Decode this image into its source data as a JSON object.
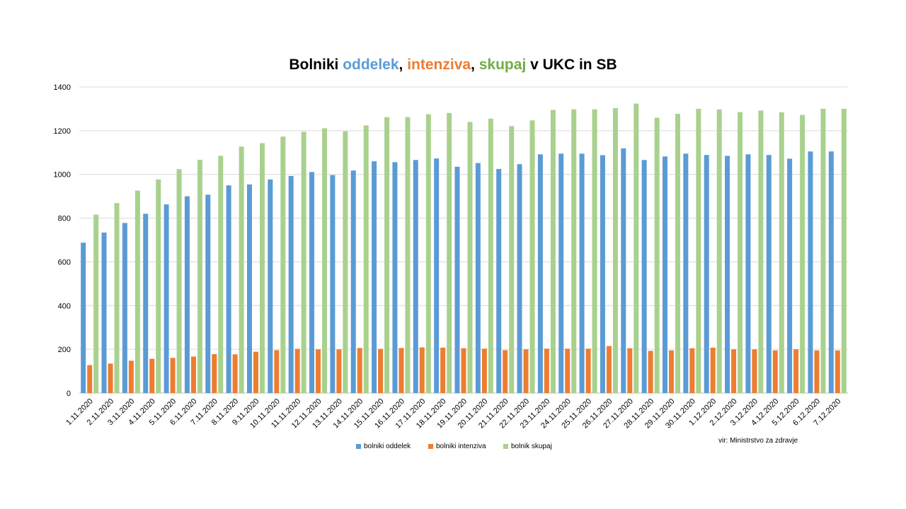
{
  "chart_data": {
    "type": "bar",
    "title": {
      "prefix": "Bolniki ",
      "part1": "oddelek",
      "sep1": ", ",
      "part2": "intenziva",
      "sep2": ", ",
      "part3": "skupaj",
      "suffix": " v UKC in SB"
    },
    "xlabel": "",
    "ylabel": "",
    "ylim": [
      0,
      1400
    ],
    "yticks": [
      0,
      200,
      400,
      600,
      800,
      1000,
      1200,
      1400
    ],
    "grid": true,
    "legend_position": "bottom",
    "categories": [
      "1.11.2020",
      "2.11.2020",
      "3.11.2020",
      "4.11.2020",
      "5.11.2020",
      "6.11.2020",
      "7.11.2020",
      "8.11.2020",
      "9.11.2020",
      "10.11.2020",
      "11.11.2020",
      "12.11.2020",
      "13.11.2020",
      "14.11.2020",
      "15.11.2020",
      "16.11.2020",
      "17.11.2020",
      "18.11.2020",
      "19.11.2020",
      "20.11.2020",
      "21.11.2020",
      "22.11.2020",
      "23.11.2020",
      "24.11.2020",
      "25.11.2020",
      "26.11.2020",
      "27.11.2020",
      "28.11.2020",
      "29.11.2020",
      "30.11.2020",
      "1.12.2020",
      "2.12.2020",
      "3.12.2020",
      "4.12.2020",
      "5.12.2020",
      "6.12.2020",
      "7.12.2020"
    ],
    "series": [
      {
        "name": "bolniki oddelek",
        "color": "#5b9bd5",
        "values": [
          688,
          734,
          778,
          820,
          863,
          900,
          907,
          950,
          954,
          977,
          993,
          1011,
          997,
          1018,
          1060,
          1056,
          1066,
          1073,
          1035,
          1052,
          1025,
          1047,
          1092,
          1095,
          1095,
          1088,
          1119,
          1066,
          1082,
          1095,
          1089,
          1085,
          1092,
          1089,
          1072,
          1105,
          1105
        ]
      },
      {
        "name": "bolniki intenziva",
        "color": "#ed7d31",
        "values": [
          128,
          135,
          148,
          157,
          161,
          167,
          178,
          177,
          189,
          196,
          202,
          200,
          200,
          206,
          202,
          206,
          209,
          208,
          205,
          203,
          196,
          200,
          203,
          203,
          203,
          215,
          205,
          193,
          195,
          205,
          208,
          200,
          200,
          195,
          200,
          195,
          195
        ]
      },
      {
        "name": "bolnik skupaj",
        "color": "#a9d18e",
        "values": [
          816,
          869,
          926,
          977,
          1024,
          1067,
          1085,
          1127,
          1143,
          1173,
          1195,
          1211,
          1197,
          1224,
          1262,
          1262,
          1275,
          1281,
          1240,
          1255,
          1221,
          1247,
          1295,
          1298,
          1298,
          1303,
          1324,
          1259,
          1277,
          1300,
          1297,
          1285,
          1292,
          1284,
          1272,
          1300,
          1300
        ]
      }
    ]
  },
  "source_note": "vir: Ministrstvo za zdravje"
}
